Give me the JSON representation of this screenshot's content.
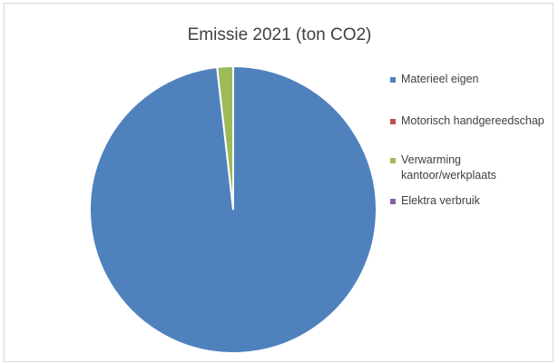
{
  "chart_data": {
    "type": "pie",
    "title": "Emissie 2021 (ton CO2)",
    "categories": [
      "Materieel eigen",
      "Motorisch handgereedschap",
      "Verwarming kantoor/werkplaats",
      "Elektra verbruik"
    ],
    "values": [
      98.2,
      0.0,
      1.8,
      0.0
    ],
    "colors": [
      "#4f81bd",
      "#c0504d",
      "#9bbb59",
      "#8064a2"
    ],
    "legend_position": "right",
    "legend": [
      {
        "lines": [
          "Materieel eigen"
        ]
      },
      {
        "lines": [
          "Motorisch handgereedschap"
        ]
      },
      {
        "lines": [
          "Verwarming",
          "kantoor/werkplaats"
        ]
      },
      {
        "lines": [
          "Elektra verbruik"
        ]
      }
    ]
  }
}
